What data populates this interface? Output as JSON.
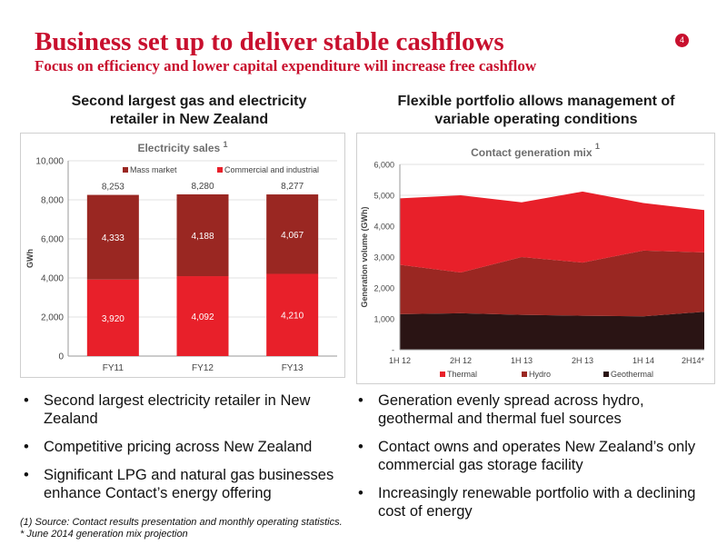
{
  "header": {
    "title": "Business set up to deliver stable cashflows",
    "subtitle": "Focus on efficiency and lower capital expenditure will increase free cashflow",
    "page_number": "4"
  },
  "left_section": {
    "heading_line1": "Second largest gas and electricity",
    "heading_line2": "retailer in New Zealand"
  },
  "right_section": {
    "heading_line1": "Flexible portfolio allows management of",
    "heading_line2": "variable operating conditions"
  },
  "chart_data": [
    {
      "type": "bar",
      "stacked": true,
      "title": "Electricity sales",
      "title_superscript": "1",
      "xlabel": "",
      "ylabel": "GWh",
      "categories": [
        "FY11",
        "FY12",
        "FY13"
      ],
      "series": [
        {
          "name": "Commercial and industrial",
          "values": [
            3920,
            4092,
            4210
          ],
          "color": "#e8202a"
        },
        {
          "name": "Mass market",
          "values": [
            4333,
            4188,
            4067
          ],
          "color": "#9a2722"
        }
      ],
      "totals": [
        8253,
        8280,
        8277
      ],
      "value_labels": {
        "Commercial and industrial": [
          "3,920",
          "4,092",
          "4,210"
        ],
        "Mass market": [
          "4,333",
          "4,188",
          "4,067"
        ],
        "totals": [
          "8,253",
          "8,280",
          "8,277"
        ]
      },
      "ylim": [
        0,
        10000
      ],
      "yticks": [
        0,
        2000,
        4000,
        6000,
        8000,
        10000
      ],
      "ytick_labels": [
        "0",
        "2,000",
        "4,000",
        "6,000",
        "8,000",
        "10,000"
      ],
      "legend_order": [
        "Mass market",
        "Commercial and industrial"
      ],
      "legend_position": "top",
      "grid": true
    },
    {
      "type": "area",
      "stacked": true,
      "title": "Contact generation mix",
      "title_superscript": "1",
      "xlabel": "",
      "ylabel": "Generation volume (GWh)",
      "x": [
        "1H 12",
        "2H 12",
        "1H 13",
        "2H 13",
        "1H 14",
        "2H14*"
      ],
      "series": [
        {
          "name": "Geothermal",
          "values": [
            1150,
            1180,
            1130,
            1100,
            1080,
            1230
          ],
          "color": "#2a1414"
        },
        {
          "name": "Hydro",
          "values": [
            1600,
            1320,
            1870,
            1720,
            2130,
            1920
          ],
          "color": "#9a2722"
        },
        {
          "name": "Thermal",
          "values": [
            2150,
            2500,
            1770,
            2300,
            1540,
            1370
          ],
          "color": "#e8202a"
        }
      ],
      "ylim": [
        0,
        6000
      ],
      "yticks": [
        0,
        1000,
        2000,
        3000,
        4000,
        5000,
        6000
      ],
      "ytick_labels": [
        "-",
        "1,000",
        "2,000",
        "3,000",
        "4,000",
        "5,000",
        "6,000"
      ],
      "legend_order": [
        "Thermal",
        "Hydro",
        "Geothermal"
      ],
      "legend_position": "bottom",
      "grid": true
    }
  ],
  "left_bullets": [
    "Second largest electricity retailer in New Zealand",
    "Competitive pricing across New Zealand",
    "Significant LPG and natural gas businesses enhance Contact’s energy offering"
  ],
  "right_bullets": [
    "Generation evenly spread across hydro, geothermal and thermal fuel sources",
    "Contact owns and operates New Zealand’s only commercial gas storage facility",
    "Increasingly renewable portfolio with a declining cost of energy"
  ],
  "bullet_glyph": "•",
  "footnotes": {
    "note1": "(1)  Source: Contact results presentation and  monthly operating statistics.",
    "note2": "*   June 2014 generation mix projection"
  }
}
